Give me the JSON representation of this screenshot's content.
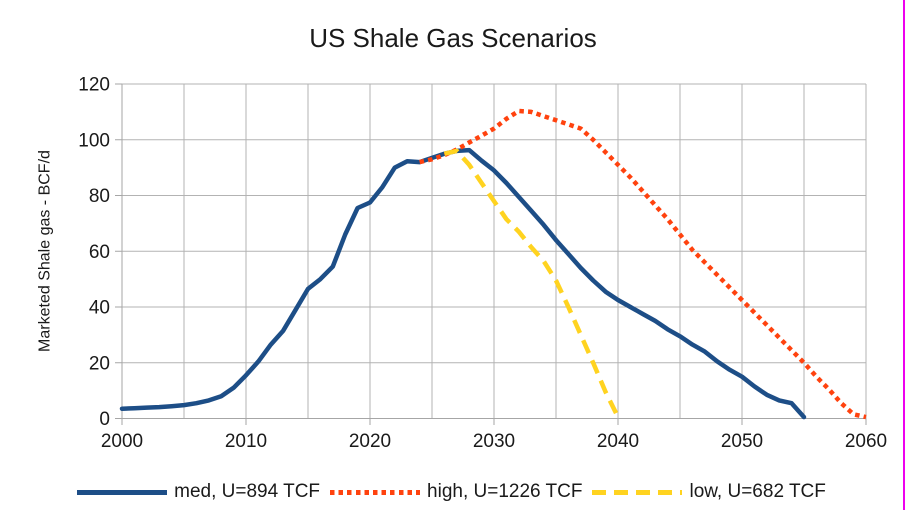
{
  "chart": {
    "title": "US Shale Gas Scenarios",
    "y_axis_label": "Marketed Shale gas - BCF/d"
  },
  "window": {
    "right_border_color": "#ee00ee"
  },
  "chart_data": {
    "type": "line",
    "title": "US Shale Gas Scenarios",
    "xlabel": "",
    "ylabel": "Marketed Shale gas - BCF/d",
    "xlim": [
      2000,
      2060
    ],
    "ylim": [
      0,
      120
    ],
    "x_ticks": [
      2000,
      2010,
      2020,
      2030,
      2040,
      2050,
      2060
    ],
    "y_ticks": [
      0,
      20,
      40,
      60,
      80,
      100,
      120
    ],
    "grid": {
      "x_step": 5,
      "y_step": 20
    },
    "legend_position": "bottom",
    "colors": {
      "grid": "#b3b3b3",
      "axis": "#a6a6a6",
      "text": "#1a1a1a"
    },
    "series": [
      {
        "name": "med, U=894 TCF",
        "color": "#1d4e87",
        "style": "solid",
        "points": [
          [
            2000,
            3.5
          ],
          [
            2001,
            3.7
          ],
          [
            2002,
            3.9
          ],
          [
            2003,
            4.1
          ],
          [
            2004,
            4.4
          ],
          [
            2005,
            4.8
          ],
          [
            2006,
            5.5
          ],
          [
            2007,
            6.5
          ],
          [
            2008,
            8
          ],
          [
            2009,
            11
          ],
          [
            2010,
            15.5
          ],
          [
            2011,
            20.5
          ],
          [
            2012,
            26.5
          ],
          [
            2013,
            31.5
          ],
          [
            2014,
            39
          ],
          [
            2015,
            46.5
          ],
          [
            2016,
            50
          ],
          [
            2017,
            54.5
          ],
          [
            2018,
            66
          ],
          [
            2019,
            75.5
          ],
          [
            2020,
            77.5
          ],
          [
            2021,
            83
          ],
          [
            2022,
            90
          ],
          [
            2023,
            92.3
          ],
          [
            2024,
            92
          ],
          [
            2025,
            93.5
          ],
          [
            2026,
            95
          ],
          [
            2027,
            96
          ],
          [
            2028,
            96.3
          ],
          [
            2029,
            92.5
          ],
          [
            2030,
            89
          ],
          [
            2031,
            84.5
          ],
          [
            2032,
            79.5
          ],
          [
            2033,
            74.5
          ],
          [
            2034,
            69.5
          ],
          [
            2035,
            64
          ],
          [
            2036,
            59
          ],
          [
            2037,
            54
          ],
          [
            2038,
            49.5
          ],
          [
            2039,
            45.5
          ],
          [
            2040,
            42.5
          ],
          [
            2041,
            40
          ],
          [
            2042,
            37.5
          ],
          [
            2043,
            35
          ],
          [
            2044,
            32
          ],
          [
            2045,
            29.5
          ],
          [
            2046,
            26.5
          ],
          [
            2047,
            24
          ],
          [
            2048,
            20.5
          ],
          [
            2049,
            17.5
          ],
          [
            2050,
            15
          ],
          [
            2051,
            11.5
          ],
          [
            2052,
            8.5
          ],
          [
            2053,
            6.5
          ],
          [
            2054,
            5.5
          ],
          [
            2055,
            0.5
          ]
        ]
      },
      {
        "name": "high, U=1226 TCF",
        "color": "#ff420e",
        "style": "dotted",
        "points": [
          [
            2024,
            92
          ],
          [
            2025,
            93
          ],
          [
            2026,
            94.5
          ],
          [
            2027,
            96.5
          ],
          [
            2028,
            99
          ],
          [
            2029,
            101.5
          ],
          [
            2030,
            104
          ],
          [
            2031,
            107.5
          ],
          [
            2032,
            110.3
          ],
          [
            2033,
            110
          ],
          [
            2034,
            108.5
          ],
          [
            2035,
            107
          ],
          [
            2036,
            105.5
          ],
          [
            2037,
            104
          ],
          [
            2038,
            100
          ],
          [
            2039,
            95.5
          ],
          [
            2040,
            91
          ],
          [
            2041,
            86.5
          ],
          [
            2042,
            81.5
          ],
          [
            2043,
            76.5
          ],
          [
            2044,
            71.5
          ],
          [
            2045,
            66
          ],
          [
            2046,
            60.5
          ],
          [
            2047,
            56
          ],
          [
            2048,
            51.5
          ],
          [
            2049,
            47
          ],
          [
            2050,
            42.5
          ],
          [
            2051,
            38
          ],
          [
            2052,
            33.5
          ],
          [
            2053,
            29
          ],
          [
            2054,
            24.5
          ],
          [
            2055,
            20
          ],
          [
            2056,
            15
          ],
          [
            2057,
            10.5
          ],
          [
            2058,
            5.5
          ],
          [
            2059,
            1.5
          ],
          [
            2060,
            0.5
          ]
        ]
      },
      {
        "name": "low, U=682 TCF",
        "color": "#ffd320",
        "style": "dashed",
        "points": [
          [
            2026,
            95
          ],
          [
            2027,
            96
          ],
          [
            2028,
            91
          ],
          [
            2029,
            84.5
          ],
          [
            2030,
            78
          ],
          [
            2031,
            71.5
          ],
          [
            2032,
            67
          ],
          [
            2033,
            61.5
          ],
          [
            2034,
            56.5
          ],
          [
            2035,
            49.5
          ],
          [
            2036,
            40
          ],
          [
            2037,
            30
          ],
          [
            2038,
            20
          ],
          [
            2039,
            9.5
          ],
          [
            2040,
            0.5
          ]
        ]
      }
    ]
  }
}
